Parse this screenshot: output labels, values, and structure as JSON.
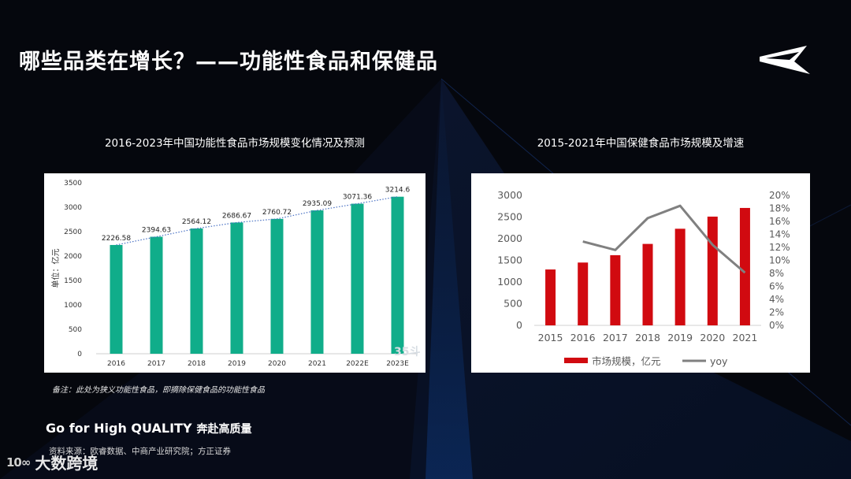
{
  "page": {
    "title": "哪些品类在增长？——功能性食品和保健品",
    "note": "备注：此处为狭义功能性食品，即摘除保健食品的功能性食品",
    "slogan_en": "Go for High QUALITY",
    "slogan_cn": "奔赴高质量",
    "source": "资料来源：欧睿数据、中商产业研究院；方正证券",
    "footer_logo": "大数跨境",
    "footer_mark": "10∞",
    "watermark": "35斗"
  },
  "colors": {
    "background": "#05070d",
    "green_bar": "#10ad8a",
    "red_bar": "#d10a10",
    "yoy_line": "#808080",
    "trend_line": "#4a72c4"
  },
  "chart_data": [
    {
      "type": "bar",
      "title": "2016-2023年中国功能性食品市场规模变化情况及预测",
      "ylabel": "单位：亿元",
      "categories": [
        "2016",
        "2017",
        "2018",
        "2019",
        "2020",
        "2021",
        "2022E",
        "2023E"
      ],
      "values": [
        2226.58,
        2394.63,
        2564.12,
        2686.67,
        2760.72,
        2935.09,
        3071.36,
        3214.6
      ],
      "data_labels": [
        "2226.58",
        "2394.63",
        "2564.12",
        "2686.67",
        "2760.72",
        "2935.09",
        "3071.36",
        "3214.6"
      ],
      "ylim": [
        0,
        3500
      ],
      "yticks": [
        0,
        500,
        1000,
        1500,
        2000,
        2500,
        3000,
        3500
      ],
      "trendline": "dotted",
      "grid": false
    },
    {
      "type": "bar",
      "title": "2015-2021年中国保健食品市场规模及增速",
      "categories": [
        "2015",
        "2016",
        "2017",
        "2018",
        "2019",
        "2020",
        "2021"
      ],
      "series": [
        {
          "name": "市场规模，亿元",
          "type": "bar",
          "axis": "left",
          "values": [
            1290,
            1450,
            1620,
            1880,
            2230,
            2510,
            2710
          ]
        },
        {
          "name": "yoy",
          "type": "line",
          "axis": "right",
          "values": [
            null,
            0.129,
            0.116,
            0.165,
            0.184,
            0.124,
            0.081
          ]
        }
      ],
      "ylim": [
        0,
        3000
      ],
      "yticks": [
        0,
        500,
        1000,
        1500,
        2000,
        2500,
        3000
      ],
      "y2lim": [
        0,
        0.2
      ],
      "y2ticks": [
        "0%",
        "2%",
        "4%",
        "6%",
        "8%",
        "10%",
        "12%",
        "14%",
        "16%",
        "18%",
        "20%"
      ],
      "legend": "bottom",
      "grid": false
    }
  ]
}
